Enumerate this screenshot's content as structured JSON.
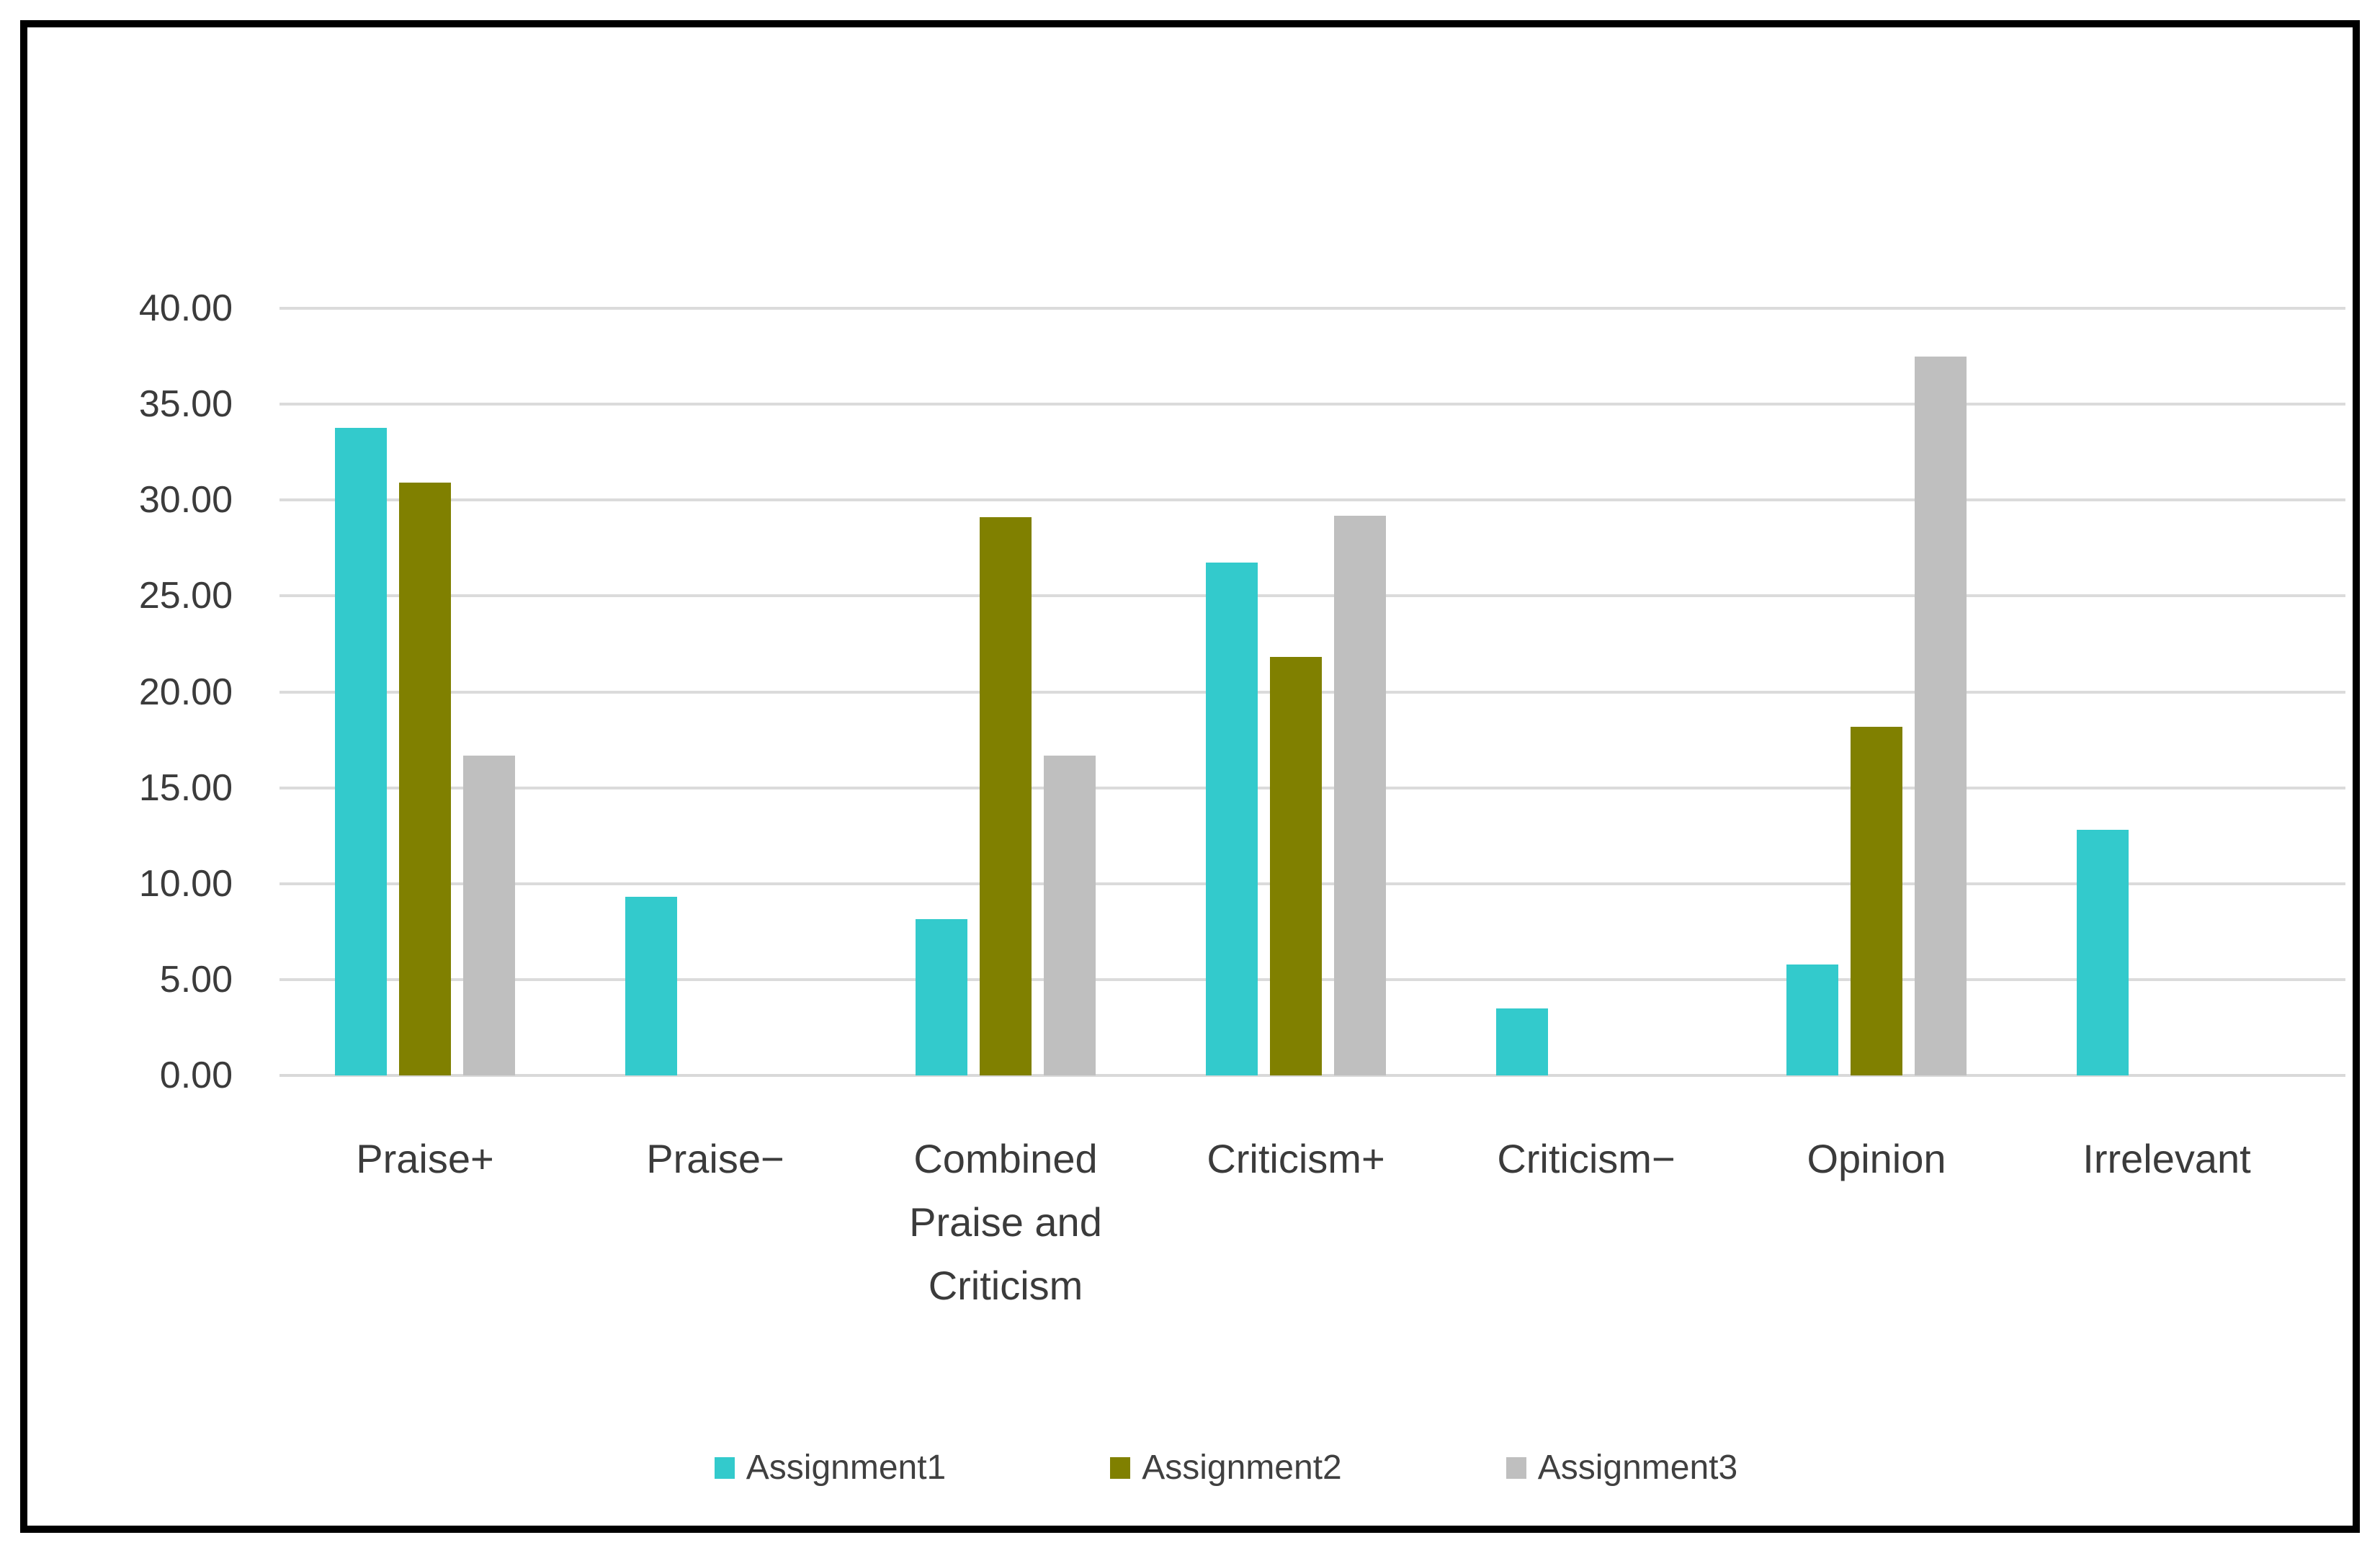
{
  "chart_data": {
    "type": "bar",
    "title": "",
    "xlabel": "",
    "ylabel": "",
    "categories": [
      "Praise+",
      "Praise−",
      "Combined Praise and Criticism",
      "Criticism+",
      "Criticism−",
      "Opinion",
      "Irrelevant"
    ],
    "series": [
      {
        "name": "Assignment1",
        "color": "#33CACC",
        "values": [
          33.75,
          9.3,
          8.15,
          26.75,
          3.5,
          5.8,
          12.8
        ]
      },
      {
        "name": "Assignment2",
        "color": "#808000",
        "values": [
          30.91,
          0,
          29.09,
          21.82,
          0,
          18.18,
          0
        ]
      },
      {
        "name": "Assignment3",
        "color": "#BFBFBF",
        "values": [
          16.67,
          0,
          16.67,
          29.17,
          0,
          37.5,
          0
        ]
      }
    ],
    "ylim": [
      0,
      40
    ],
    "ytick_step": 5,
    "ytick_labels": [
      "0.00",
      "5.00",
      "10.00",
      "15.00",
      "20.00",
      "25.00",
      "30.00",
      "35.00",
      "40.00"
    ],
    "grid": "horizontal",
    "legend_position": "bottom"
  },
  "style": {
    "frame_border_color": "#000000",
    "background_color": "#FFFFFF",
    "gridline_color": "#DBDBDB",
    "axis_line_color": "#D9D9D9",
    "tick_text_color": "#3B3B3B",
    "category_text_color": "#3B3B3B",
    "legend_text_color": "#404040"
  }
}
